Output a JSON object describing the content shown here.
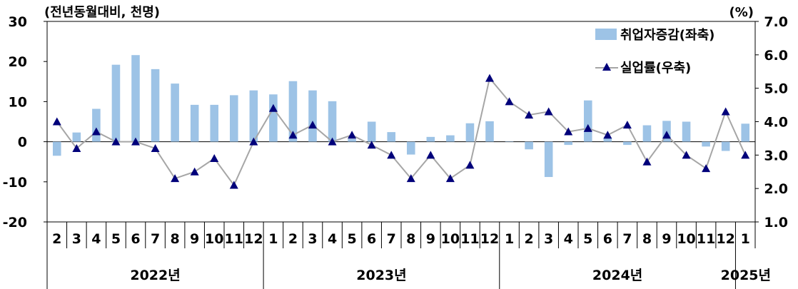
{
  "chart_data": {
    "type": "bar+line",
    "left_axis_unit": "(전년동월대비, 천명)",
    "right_axis_unit": "(%)",
    "left_ylim": [
      -20,
      30
    ],
    "left_ticks": [
      "30",
      "20",
      "10",
      "0",
      "-10",
      "-20"
    ],
    "right_ylim": [
      1.0,
      7.0
    ],
    "right_ticks": [
      "7.0",
      "6.0",
      "5.0",
      "4.0",
      "3.0",
      "2.0",
      "1.0"
    ],
    "months": [
      "2",
      "3",
      "4",
      "5",
      "6",
      "7",
      "8",
      "9",
      "10",
      "11",
      "12",
      "1",
      "2",
      "3",
      "4",
      "5",
      "6",
      "7",
      "8",
      "9",
      "10",
      "11",
      "12",
      "1",
      "2",
      "3",
      "4",
      "5",
      "6",
      "7",
      "8",
      "9",
      "10",
      "11",
      "12",
      "1"
    ],
    "years": [
      {
        "label": "2022년",
        "count": 11
      },
      {
        "label": "2023년",
        "count": 12
      },
      {
        "label": "2024년",
        "count": 12
      },
      {
        "label": "2025년",
        "count": 1
      }
    ],
    "series": [
      {
        "name": "취업자증감(좌축)",
        "type": "bar",
        "axis": "left",
        "color": "#9DC3E6",
        "values": [
          -3.5,
          2.3,
          8.2,
          19.2,
          21.6,
          18.1,
          14.5,
          9.2,
          9.2,
          11.6,
          12.8,
          11.8,
          15.1,
          12.8,
          10.1,
          0.7,
          5.0,
          2.4,
          -3.2,
          1.2,
          1.6,
          4.6,
          5.1,
          0.1,
          -1.9,
          -8.8,
          -0.8,
          10.3,
          1.0,
          -0.8,
          4.1,
          5.2,
          5.0,
          -1.2,
          -2.3,
          4.5
        ]
      },
      {
        "name": "실업률(우축)",
        "type": "line",
        "axis": "right",
        "line_color": "#A6A6A6",
        "marker_color": "#00007A",
        "values": [
          4.0,
          3.2,
          3.7,
          3.4,
          3.4,
          3.2,
          2.3,
          2.5,
          2.9,
          2.1,
          3.4,
          4.4,
          3.6,
          3.9,
          3.4,
          3.6,
          3.3,
          3.0,
          2.3,
          3.0,
          2.3,
          2.7,
          5.3,
          4.6,
          4.2,
          4.3,
          3.7,
          3.8,
          3.6,
          3.9,
          2.8,
          3.6,
          3.0,
          2.6,
          4.3,
          3.0
        ]
      }
    ],
    "legend_placement": "top-right"
  }
}
